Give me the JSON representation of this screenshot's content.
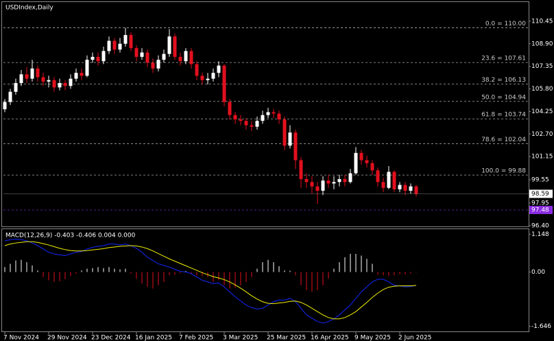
{
  "chart_data": [
    {
      "type": "candlestick",
      "title": "USDIndex,Daily",
      "categories": [
        "7 Nov 2024",
        null,
        null,
        null,
        null,
        null,
        null,
        null,
        "29 Nov 2024",
        null,
        null,
        null,
        null,
        null,
        null,
        null,
        "23 Dec 2024",
        null,
        null,
        null,
        null,
        null,
        null,
        null,
        "16 Jan 2025",
        null,
        null,
        null,
        null,
        null,
        null,
        null,
        "7 Feb 2025",
        null,
        null,
        null,
        null,
        null,
        null,
        null,
        "3 Mar 2025",
        null,
        null,
        null,
        null,
        null,
        null,
        null,
        "25 Mar 2025",
        null,
        null,
        null,
        null,
        null,
        null,
        null,
        "16 Apr 2025",
        null,
        null,
        null,
        null,
        null,
        null,
        null,
        "9 May 2025",
        null,
        null,
        null,
        null,
        null,
        null,
        null,
        "2 Jun 2025",
        null,
        null,
        null
      ],
      "open": [
        104.4,
        104.9,
        105.6,
        106.2,
        106.8,
        106.5,
        107.2,
        106.6,
        106.3,
        106.4,
        105.9,
        106.2,
        106.0,
        106.5,
        106.9,
        106.7,
        107.8,
        108.0,
        107.7,
        108.4,
        109.1,
        108.5,
        108.9,
        109.5,
        108.6,
        108.0,
        108.3,
        107.6,
        107.2,
        107.8,
        108.2,
        109.4,
        108.0,
        107.7,
        108.4,
        107.5,
        106.7,
        106.4,
        106.5,
        106.9,
        107.4,
        104.9,
        104.0,
        103.7,
        103.6,
        103.3,
        103.2,
        103.6,
        104.0,
        104.2,
        104.1,
        103.7,
        101.9,
        102.8,
        100.9,
        99.6,
        99.4,
        99.1,
        98.8,
        99.5,
        99.3,
        99.4,
        99.6,
        99.4,
        100.0,
        101.4,
        100.9,
        100.7,
        100.2,
        99.4,
        99.0,
        100.1,
        98.9,
        99.2,
        98.8,
        99.1
      ],
      "high": [
        105.1,
        105.8,
        106.5,
        107.1,
        107.3,
        107.8,
        107.4,
        106.9,
        106.7,
        106.6,
        106.5,
        106.4,
        106.8,
        107.2,
        107.2,
        108.1,
        108.3,
        108.3,
        108.7,
        109.4,
        109.3,
        109.3,
        110.0,
        109.7,
        108.8,
        108.6,
        108.5,
        107.9,
        108.1,
        108.5,
        109.9,
        109.6,
        108.3,
        108.6,
        108.6,
        107.7,
        106.9,
        106.9,
        107.2,
        107.7,
        107.5,
        105.1,
        104.2,
        104.0,
        103.8,
        103.6,
        103.9,
        104.3,
        104.5,
        104.4,
        104.3,
        103.9,
        103.3,
        103.0,
        101.1,
        100.0,
        99.8,
        99.4,
        99.8,
        99.9,
        99.8,
        99.9,
        99.9,
        100.3,
        101.8,
        101.6,
        101.2,
        100.9,
        100.4,
        99.7,
        100.5,
        100.2,
        99.4,
        99.4,
        99.3,
        99.2
      ],
      "low": [
        104.2,
        104.7,
        105.4,
        106.0,
        106.2,
        106.3,
        106.3,
        106.0,
        105.9,
        105.6,
        105.7,
        105.7,
        105.8,
        106.3,
        106.4,
        106.6,
        107.6,
        107.4,
        107.5,
        108.2,
        108.2,
        108.3,
        108.7,
        108.4,
        107.7,
        107.8,
        107.3,
        106.9,
        107.0,
        107.6,
        108.0,
        107.8,
        107.4,
        107.5,
        107.2,
        106.4,
        106.1,
        106.1,
        106.3,
        106.6,
        104.6,
        103.7,
        103.4,
        103.3,
        103.0,
        102.9,
        103.0,
        103.4,
        103.8,
        103.8,
        103.4,
        101.6,
        101.7,
        100.3,
        99.0,
        99.0,
        98.6,
        97.9,
        98.5,
        99.0,
        98.9,
        99.1,
        99.1,
        99.3,
        99.9,
        100.6,
        100.4,
        99.9,
        99.1,
        98.7,
        98.9,
        98.7,
        98.7,
        98.5,
        98.6,
        98.4
      ],
      "close": [
        104.9,
        105.6,
        106.2,
        106.8,
        106.5,
        107.2,
        106.6,
        106.3,
        106.4,
        105.9,
        106.2,
        106.0,
        106.5,
        106.9,
        106.7,
        107.8,
        108.0,
        107.7,
        108.4,
        109.1,
        108.5,
        108.9,
        109.5,
        108.6,
        108.0,
        108.3,
        107.6,
        107.2,
        107.8,
        108.2,
        109.4,
        108.0,
        107.7,
        108.4,
        107.5,
        106.7,
        106.4,
        106.5,
        106.9,
        107.4,
        104.9,
        104.0,
        103.7,
        103.6,
        103.3,
        103.2,
        103.6,
        104.0,
        104.2,
        104.1,
        103.7,
        101.9,
        102.8,
        100.9,
        99.6,
        99.4,
        99.1,
        98.8,
        99.5,
        99.3,
        99.4,
        99.6,
        99.4,
        100.0,
        101.4,
        100.9,
        100.7,
        100.2,
        99.4,
        99.0,
        100.1,
        98.9,
        99.2,
        98.8,
        99.1,
        98.59
      ],
      "up_color": "#ffffff",
      "down_color": "#e3101e",
      "ylim": [
        96.35,
        111.67
      ],
      "yticks": [
        110.45,
        {
          "value": 108.9,
          "label": "108.90"
        },
        107.35,
        {
          "value": 105.8,
          "label": "105.80"
        },
        104.25,
        {
          "value": 102.7,
          "label": "102.70"
        },
        101.15,
        99.55,
        97.95,
        {
          "value": 96.4,
          "label": "96.40"
        }
      ],
      "fib_levels": [
        {
          "label": "0.0 = 110.00",
          "value": 110.0
        },
        {
          "label": "23.6 = 107.61",
          "value": 107.61
        },
        {
          "label": "38.2 = 106.13",
          "value": 106.13
        },
        {
          "label": "50.0 = 104.94",
          "value": 104.94
        },
        {
          "label": "61.8 = 103.74",
          "value": 103.74
        },
        {
          "label": "78.6 = 102.04",
          "value": 102.04
        },
        {
          "label": "100.0 = 99.88",
          "value": 99.88
        }
      ],
      "price_lines": [
        {
          "value": 98.59,
          "color": "#ffffff",
          "text_color": "#000000",
          "dashed": false
        },
        {
          "value": 97.48,
          "color": "#8a2be2",
          "text_color": "#ffffff",
          "dashed": true
        }
      ]
    },
    {
      "type": "macd",
      "title": "MACD(12,26,9) -0.403 -0.406 0.004 0.000",
      "histogram": {
        "up_color": "#ffffff",
        "down_color": "#e3101e",
        "values": [
          0.15,
          0.25,
          0.35,
          0.37,
          0.3,
          0.2,
          0.05,
          -0.15,
          -0.25,
          -0.3,
          -0.28,
          -0.22,
          -0.12,
          -0.05,
          0.05,
          0.1,
          0.12,
          0.15,
          0.12,
          0.15,
          0.1,
          0.08,
          0.1,
          -0.05,
          -0.2,
          -0.35,
          -0.45,
          -0.5,
          -0.4,
          -0.3,
          -0.1,
          -0.08,
          -0.04,
          0.03,
          -0.04,
          -0.1,
          -0.12,
          -0.15,
          -0.3,
          -0.25,
          -0.4,
          -0.5,
          -0.48,
          -0.4,
          -0.3,
          -0.15,
          0.1,
          0.3,
          0.37,
          0.3,
          0.18,
          0.05,
          0.04,
          -0.1,
          -0.4,
          -0.55,
          -0.6,
          -0.55,
          -0.4,
          -0.2,
          0.1,
          0.3,
          0.45,
          0.55,
          0.55,
          0.5,
          0.4,
          0.25,
          -0.08,
          -0.1,
          -0.12,
          -0.1,
          -0.06,
          -0.08,
          -0.05,
          0.004
        ]
      },
      "lines": [
        {
          "color": "#1428ff",
          "values": [
            0.95,
            0.98,
            1.0,
            0.98,
            0.95,
            0.88,
            0.8,
            0.7,
            0.6,
            0.55,
            0.52,
            0.5,
            0.55,
            0.6,
            0.62,
            0.7,
            0.75,
            0.78,
            0.8,
            0.85,
            0.85,
            0.82,
            0.85,
            0.8,
            0.72,
            0.6,
            0.45,
            0.35,
            0.25,
            0.2,
            0.15,
            0.08,
            0.02,
            0.0,
            -0.05,
            -0.15,
            -0.25,
            -0.3,
            -0.35,
            -0.33,
            -0.45,
            -0.6,
            -0.75,
            -0.88,
            -1.0,
            -1.08,
            -1.12,
            -1.1,
            -1.0,
            -0.9,
            -0.85,
            -0.85,
            -0.8,
            -0.9,
            -1.1,
            -1.3,
            -1.4,
            -1.5,
            -1.55,
            -1.5,
            -1.42,
            -1.3,
            -1.15,
            -1.0,
            -0.8,
            -0.6,
            -0.45,
            -0.3,
            -0.22,
            -0.22,
            -0.3,
            -0.4,
            -0.42,
            -0.45,
            -0.44,
            -0.403
          ]
        },
        {
          "color": "#f0f000",
          "values": [
            0.8,
            0.85,
            0.88,
            0.9,
            0.92,
            0.92,
            0.9,
            0.86,
            0.82,
            0.77,
            0.72,
            0.68,
            0.65,
            0.64,
            0.64,
            0.65,
            0.67,
            0.69,
            0.71,
            0.74,
            0.76,
            0.78,
            0.79,
            0.8,
            0.79,
            0.76,
            0.71,
            0.64,
            0.56,
            0.48,
            0.4,
            0.33,
            0.26,
            0.19,
            0.12,
            0.05,
            -0.02,
            -0.08,
            -0.14,
            -0.18,
            -0.23,
            -0.3,
            -0.39,
            -0.49,
            -0.6,
            -0.72,
            -0.82,
            -0.9,
            -0.95,
            -0.96,
            -0.94,
            -0.92,
            -0.89,
            -0.88,
            -0.92,
            -1.0,
            -1.1,
            -1.2,
            -1.3,
            -1.38,
            -1.42,
            -1.42,
            -1.38,
            -1.3,
            -1.2,
            -1.06,
            -0.92,
            -0.77,
            -0.64,
            -0.53,
            -0.46,
            -0.43,
            -0.42,
            -0.42,
            -0.42,
            -0.406
          ]
        }
      ],
      "ylim": [
        -1.8,
        1.3
      ],
      "yticks": [
        1.148,
        {
          "value": 0,
          "label": "0.00"
        },
        -1.646
      ]
    }
  ]
}
